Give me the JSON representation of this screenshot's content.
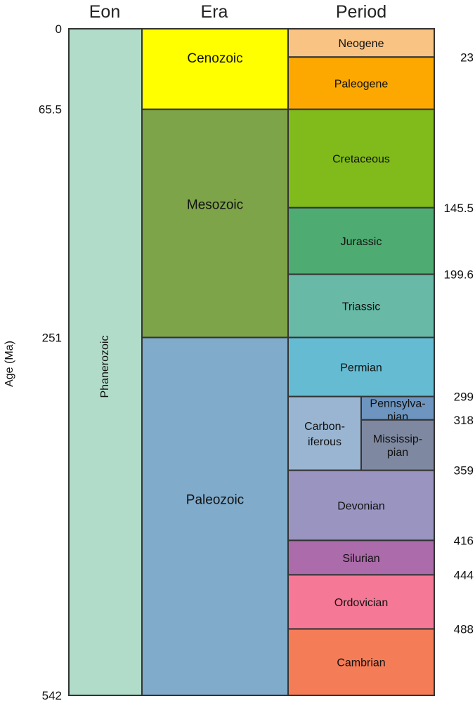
{
  "headers": {
    "eon": "Eon",
    "era": "Era",
    "period": "Period"
  },
  "axis_label": "Age (Ma)",
  "left_ticks": [
    {
      "value": 0,
      "label": "0"
    },
    {
      "value": 65.5,
      "label": "65.5"
    },
    {
      "value": 251,
      "label": "251"
    },
    {
      "value": 542,
      "label": "542"
    }
  ],
  "right_ticks": [
    {
      "value": 23,
      "label": "23"
    },
    {
      "value": 145.5,
      "label": "145.5"
    },
    {
      "value": 199.6,
      "label": "199.6"
    },
    {
      "value": 299,
      "label": "299"
    },
    {
      "value": 318,
      "label": "318"
    },
    {
      "value": 359,
      "label": "359"
    },
    {
      "value": 416,
      "label": "416"
    },
    {
      "value": 444,
      "label": "444"
    },
    {
      "value": 488,
      "label": "488"
    }
  ],
  "eons": [
    {
      "name": "Phanerozoic",
      "start": 0,
      "end": 542,
      "color": "#b1dcc9"
    }
  ],
  "eras": [
    {
      "name": "Cenozoic",
      "start": 0,
      "end": 65.5,
      "color": "#ffff00"
    },
    {
      "name": "Mesozoic",
      "start": 65.5,
      "end": 251,
      "color": "#7ea449"
    },
    {
      "name": "Paleozoic",
      "start": 251,
      "end": 542,
      "color": "#80abcb"
    }
  ],
  "periods": [
    {
      "name": "Neogene",
      "start": 0,
      "end": 23,
      "color": "#f9c383"
    },
    {
      "name": "Paleogene",
      "start": 23,
      "end": 65.5,
      "color": "#fca800"
    },
    {
      "name": "Cretaceous",
      "start": 65.5,
      "end": 145.5,
      "color": "#80bb1b"
    },
    {
      "name": "Jurassic",
      "start": 145.5,
      "end": 199.6,
      "color": "#4eab71"
    },
    {
      "name": "Triassic",
      "start": 199.6,
      "end": 251,
      "color": "#68b9a6"
    },
    {
      "name": "Permian",
      "start": 251,
      "end": 299,
      "color": "#65bcd2"
    },
    {
      "name": "Carbon-\niferous",
      "start": 299,
      "end": 359,
      "color": "#99b5d1",
      "split": true
    },
    {
      "name": "Devonian",
      "start": 359,
      "end": 416,
      "color": "#9994c0"
    },
    {
      "name": "Silurian",
      "start": 416,
      "end": 444,
      "color": "#ac6baa"
    },
    {
      "name": "Ordovician",
      "start": 444,
      "end": 488,
      "color": "#f57896"
    },
    {
      "name": "Cambrian",
      "start": 488,
      "end": 542,
      "color": "#f47c57"
    }
  ],
  "subperiods": [
    {
      "name": "Pennsylva-\nnian",
      "start": 299,
      "end": 318,
      "color": "#6d95c0"
    },
    {
      "name": "Mississip-\npian",
      "start": 318,
      "end": 359,
      "color": "#7e88a0"
    }
  ]
}
